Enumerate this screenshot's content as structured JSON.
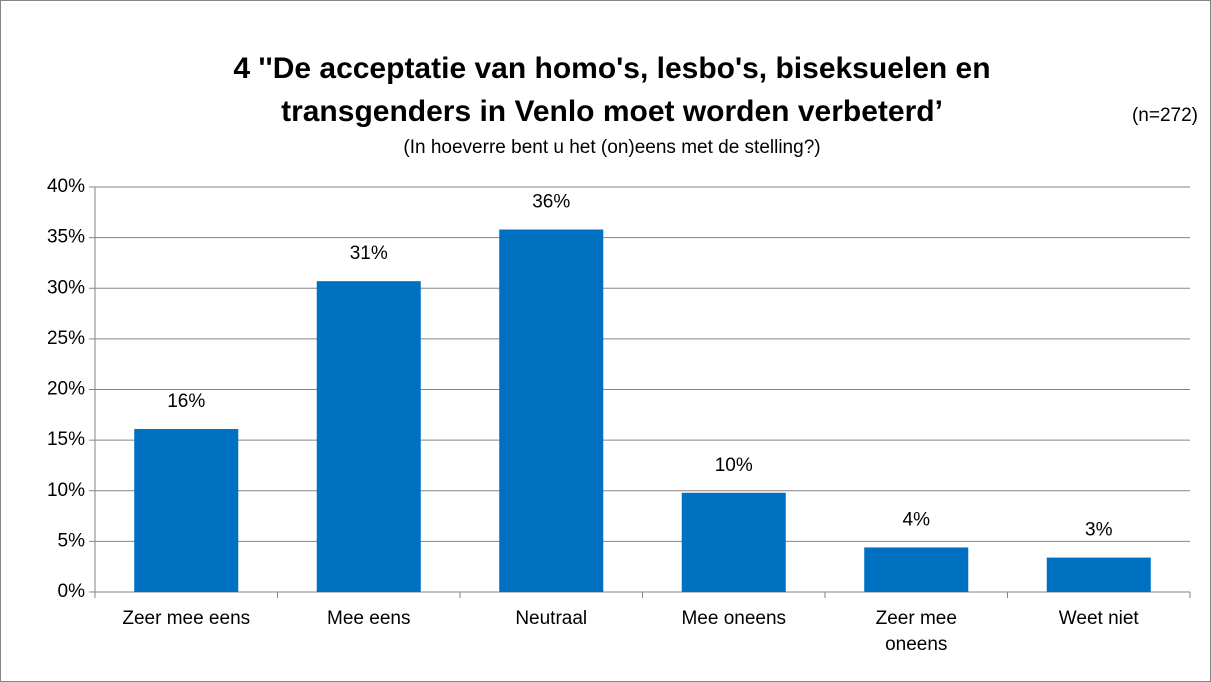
{
  "chart_data": {
    "type": "bar",
    "title": [
      "4 ''De acceptatie van homo's, lesbo's, biseksuelen en",
      "transgenders in Venlo moet worden verbeterd’"
    ],
    "subtitle": "(In hoeverre bent u het (on)eens met de stelling?)",
    "annotation": "(n=272)",
    "categories": [
      "Zeer mee eens",
      "Mee eens",
      "Neutraal",
      "Mee oneens",
      "Zeer mee oneens",
      "Weet niet"
    ],
    "values": [
      16.1,
      30.7,
      35.8,
      9.8,
      4.4,
      3.4
    ],
    "value_labels": [
      "16%",
      "31%",
      "36%",
      "10%",
      "4%",
      "3%"
    ],
    "color": "#0070c0",
    "ylim": [
      0,
      40
    ],
    "yticks": [
      {
        "value": 0,
        "label": "0%"
      },
      {
        "value": 5,
        "label": "5%"
      },
      {
        "value": 10,
        "label": "10%"
      },
      {
        "value": 15,
        "label": "15%"
      },
      {
        "value": 20,
        "label": "20%"
      },
      {
        "value": 25,
        "label": "25%"
      },
      {
        "value": 30,
        "label": "30%"
      },
      {
        "value": 35,
        "label": "35%"
      },
      {
        "value": 40,
        "label": "40%"
      }
    ],
    "grid": true
  }
}
